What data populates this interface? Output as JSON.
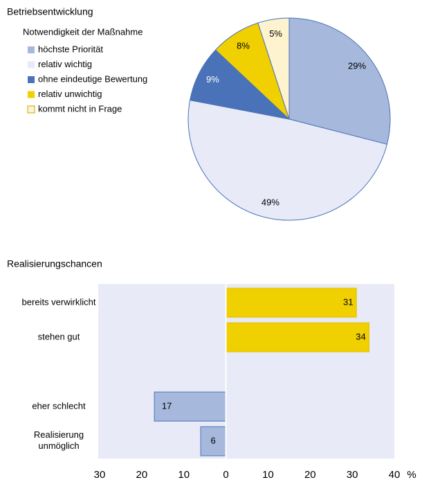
{
  "chart_data": [
    {
      "type": "pie",
      "title": "Betriebsentwicklung",
      "legend_title": "Notwendigkeit der Maßnahme",
      "categories": [
        "höchste Priorität",
        "relativ wichtig",
        "ohne eindeutige Bewertung",
        "relativ unwichtig",
        "kommt nicht in Frage"
      ],
      "values": [
        29,
        49,
        9,
        8,
        5
      ],
      "value_labels": [
        "29%",
        "49%",
        "9%",
        "8%",
        "5%"
      ],
      "colors": [
        "#a6b8dc",
        "#e8eaf7",
        "#4a72b8",
        "#f0d000",
        "#fdf4cf"
      ],
      "label_colors": [
        "#000000",
        "#000000",
        "#ffffff",
        "#000000",
        "#000000"
      ],
      "legend": "left"
    },
    {
      "type": "hbar",
      "title": "Realisierungschancen",
      "categories": [
        "bereits verwirklicht",
        "stehen gut",
        null,
        "eher schlecht",
        "Realisierung\nunmöglich"
      ],
      "values": [
        31,
        34,
        null,
        -17,
        -6
      ],
      "value_labels": [
        "31",
        "34",
        null,
        "17",
        "6"
      ],
      "colors": [
        "#f0d000",
        "#f0d000",
        null,
        "#a6b8dc",
        "#a6b8dc"
      ],
      "xlim": [
        -30,
        40
      ],
      "xticks": [
        {
          "value": -30,
          "label": "30"
        },
        {
          "value": -20,
          "label": "20"
        },
        {
          "value": -10,
          "label": "10"
        },
        0,
        10,
        20,
        30,
        40
      ],
      "xlabel": "%"
    }
  ]
}
